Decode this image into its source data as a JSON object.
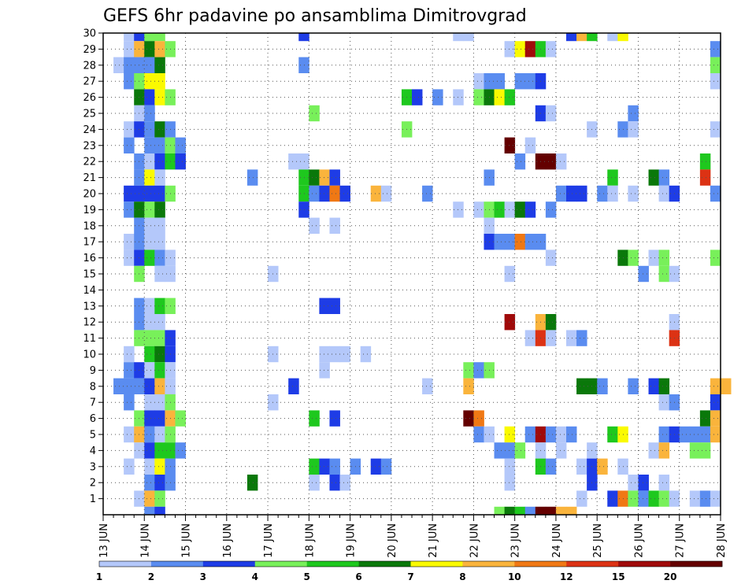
{
  "chart_data": {
    "type": "heatmap",
    "title": "GEFS 6hr padavine po ansamblima Dimitrovgrad",
    "x_tick_labels": [
      "13 JUN",
      "14 JUN",
      "15 JUN",
      "16 JUN",
      "17 JUN",
      "18 JUN",
      "19 JUN",
      "20 JUN",
      "21 JUN",
      "22 JUN",
      "23 JUN",
      "24 JUN",
      "25 JUN",
      "26 JUN",
      "27 JUN",
      "28 JUN"
    ],
    "y_tick_labels": [
      "1",
      "2",
      "3",
      "4",
      "5",
      "6",
      "7",
      "8",
      "9",
      "10",
      "11",
      "12",
      "13",
      "14",
      "15",
      "16",
      "17",
      "18",
      "19",
      "20",
      "21",
      "22",
      "23",
      "24",
      "25",
      "26",
      "27",
      "28",
      "29",
      "30"
    ],
    "ylim": [
      0,
      30
    ],
    "grid": true,
    "colorbar": {
      "tick_labels": [
        "1",
        "2",
        "3",
        "4",
        "5",
        "6",
        "7",
        "8",
        "10",
        "12",
        "15",
        "20"
      ],
      "colors": [
        "#b4c8fa",
        "#5a8cf0",
        "#1e3ce6",
        "#78f05a",
        "#1ec81e",
        "#0a780a",
        "#fafa00",
        "#fab43c",
        "#f07814",
        "#dc3214",
        "#a00a0a",
        "#640000"
      ]
    },
    "cells": [
      [
        2,
        30,
        1
      ],
      [
        3,
        30,
        3
      ],
      [
        4,
        30,
        4
      ],
      [
        5,
        30,
        4
      ],
      [
        19,
        30,
        3
      ],
      [
        34,
        30,
        1
      ],
      [
        35,
        30,
        1
      ],
      [
        45,
        30,
        3
      ],
      [
        46,
        30,
        8
      ],
      [
        47,
        30,
        5
      ],
      [
        49,
        30,
        1
      ],
      [
        50,
        30,
        7
      ],
      [
        2,
        29,
        1
      ],
      [
        3,
        29,
        8
      ],
      [
        4,
        29,
        6
      ],
      [
        5,
        29,
        8
      ],
      [
        6,
        29,
        4
      ],
      [
        39,
        29,
        1
      ],
      [
        40,
        29,
        7
      ],
      [
        41,
        29,
        11
      ],
      [
        42,
        29,
        5
      ],
      [
        43,
        29,
        1
      ],
      [
        59,
        29,
        2
      ],
      [
        1,
        28,
        1
      ],
      [
        2,
        28,
        2
      ],
      [
        3,
        28,
        2
      ],
      [
        4,
        28,
        2
      ],
      [
        5,
        28,
        6
      ],
      [
        19,
        28,
        2
      ],
      [
        59,
        28,
        4
      ],
      [
        2,
        27,
        2
      ],
      [
        3,
        27,
        4
      ],
      [
        4,
        27,
        7
      ],
      [
        5,
        27,
        7
      ],
      [
        36,
        27,
        1
      ],
      [
        37,
        27,
        2
      ],
      [
        38,
        27,
        2
      ],
      [
        40,
        27,
        2
      ],
      [
        41,
        27,
        2
      ],
      [
        42,
        27,
        3
      ],
      [
        59,
        27,
        1
      ],
      [
        3,
        26,
        6
      ],
      [
        4,
        26,
        3
      ],
      [
        5,
        26,
        7
      ],
      [
        6,
        26,
        4
      ],
      [
        29,
        26,
        5
      ],
      [
        30,
        26,
        3
      ],
      [
        32,
        26,
        2
      ],
      [
        34,
        26,
        1
      ],
      [
        36,
        26,
        4
      ],
      [
        37,
        26,
        6
      ],
      [
        38,
        26,
        7
      ],
      [
        39,
        26,
        5
      ],
      [
        3,
        25,
        1
      ],
      [
        4,
        25,
        2
      ],
      [
        20,
        25,
        4
      ],
      [
        42,
        25,
        3
      ],
      [
        43,
        25,
        1
      ],
      [
        51,
        25,
        2
      ],
      [
        2,
        24,
        1
      ],
      [
        3,
        24,
        3
      ],
      [
        4,
        24,
        2
      ],
      [
        5,
        24,
        6
      ],
      [
        6,
        24,
        2
      ],
      [
        29,
        24,
        4
      ],
      [
        47,
        24,
        1
      ],
      [
        50,
        24,
        2
      ],
      [
        51,
        24,
        1
      ],
      [
        59,
        24,
        1
      ],
      [
        2,
        23,
        2
      ],
      [
        4,
        23,
        2
      ],
      [
        5,
        23,
        2
      ],
      [
        6,
        23,
        4
      ],
      [
        7,
        23,
        2
      ],
      [
        39,
        23,
        12
      ],
      [
        41,
        23,
        1
      ],
      [
        3,
        22,
        2
      ],
      [
        4,
        22,
        1
      ],
      [
        5,
        22,
        3
      ],
      [
        6,
        22,
        5
      ],
      [
        7,
        22,
        3
      ],
      [
        18,
        22,
        1
      ],
      [
        19,
        22,
        1
      ],
      [
        40,
        22,
        2
      ],
      [
        42,
        22,
        12
      ],
      [
        43,
        22,
        12
      ],
      [
        44,
        22,
        1
      ],
      [
        58,
        22,
        5
      ],
      [
        3,
        21,
        2
      ],
      [
        4,
        21,
        7
      ],
      [
        5,
        21,
        1
      ],
      [
        14,
        21,
        2
      ],
      [
        19,
        21,
        5
      ],
      [
        20,
        21,
        6
      ],
      [
        21,
        21,
        8
      ],
      [
        22,
        21,
        3
      ],
      [
        37,
        21,
        2
      ],
      [
        49,
        21,
        5
      ],
      [
        53,
        21,
        6
      ],
      [
        54,
        21,
        2
      ],
      [
        58,
        21,
        10
      ],
      [
        2,
        20,
        3
      ],
      [
        3,
        20,
        3
      ],
      [
        4,
        20,
        3
      ],
      [
        5,
        20,
        3
      ],
      [
        6,
        20,
        4
      ],
      [
        19,
        20,
        5
      ],
      [
        20,
        20,
        2
      ],
      [
        21,
        20,
        3
      ],
      [
        22,
        20,
        9
      ],
      [
        23,
        20,
        3
      ],
      [
        26,
        20,
        8
      ],
      [
        27,
        20,
        1
      ],
      [
        31,
        20,
        2
      ],
      [
        44,
        20,
        2
      ],
      [
        45,
        20,
        3
      ],
      [
        46,
        20,
        3
      ],
      [
        48,
        20,
        2
      ],
      [
        49,
        20,
        1
      ],
      [
        51,
        20,
        1
      ],
      [
        54,
        20,
        1
      ],
      [
        55,
        20,
        3
      ],
      [
        59,
        20,
        2
      ],
      [
        2,
        19,
        2
      ],
      [
        3,
        19,
        6
      ],
      [
        4,
        19,
        4
      ],
      [
        5,
        19,
        6
      ],
      [
        19,
        19,
        3
      ],
      [
        34,
        19,
        1
      ],
      [
        36,
        19,
        1
      ],
      [
        37,
        19,
        4
      ],
      [
        38,
        19,
        5
      ],
      [
        39,
        19,
        1
      ],
      [
        40,
        19,
        6
      ],
      [
        41,
        19,
        3
      ],
      [
        43,
        19,
        2
      ],
      [
        3,
        18,
        2
      ],
      [
        4,
        18,
        1
      ],
      [
        5,
        18,
        1
      ],
      [
        20,
        18,
        1
      ],
      [
        22,
        18,
        1
      ],
      [
        37,
        18,
        1
      ],
      [
        2,
        17,
        1
      ],
      [
        3,
        17,
        2
      ],
      [
        4,
        17,
        1
      ],
      [
        5,
        17,
        1
      ],
      [
        37,
        17,
        3
      ],
      [
        38,
        17,
        2
      ],
      [
        39,
        17,
        2
      ],
      [
        40,
        17,
        9
      ],
      [
        41,
        17,
        2
      ],
      [
        42,
        17,
        2
      ],
      [
        2,
        16,
        1
      ],
      [
        3,
        16,
        3
      ],
      [
        4,
        16,
        5
      ],
      [
        5,
        16,
        2
      ],
      [
        6,
        16,
        1
      ],
      [
        43,
        16,
        1
      ],
      [
        50,
        16,
        6
      ],
      [
        51,
        16,
        4
      ],
      [
        53,
        16,
        1
      ],
      [
        54,
        16,
        4
      ],
      [
        59,
        16,
        4
      ],
      [
        3,
        15,
        4
      ],
      [
        5,
        15,
        1
      ],
      [
        6,
        15,
        1
      ],
      [
        16,
        15,
        1
      ],
      [
        39,
        15,
        1
      ],
      [
        52,
        15,
        2
      ],
      [
        54,
        15,
        4
      ],
      [
        55,
        15,
        1
      ],
      [
        3,
        13,
        2
      ],
      [
        4,
        13,
        1
      ],
      [
        5,
        13,
        5
      ],
      [
        6,
        13,
        4
      ],
      [
        21,
        13,
        3
      ],
      [
        22,
        13,
        3
      ],
      [
        3,
        12,
        2
      ],
      [
        4,
        12,
        1
      ],
      [
        5,
        12,
        1
      ],
      [
        39,
        12,
        11
      ],
      [
        42,
        12,
        8
      ],
      [
        43,
        12,
        6
      ],
      [
        55,
        12,
        1
      ],
      [
        3,
        11,
        4
      ],
      [
        4,
        11,
        4
      ],
      [
        5,
        11,
        4
      ],
      [
        6,
        11,
        3
      ],
      [
        41,
        11,
        1
      ],
      [
        42,
        11,
        10
      ],
      [
        43,
        11,
        1
      ],
      [
        45,
        11,
        1
      ],
      [
        46,
        11,
        2
      ],
      [
        55,
        11,
        10
      ],
      [
        2,
        10,
        1
      ],
      [
        4,
        10,
        5
      ],
      [
        5,
        10,
        6
      ],
      [
        6,
        10,
        3
      ],
      [
        16,
        10,
        1
      ],
      [
        21,
        10,
        1
      ],
      [
        22,
        10,
        1
      ],
      [
        23,
        10,
        1
      ],
      [
        25,
        10,
        1
      ],
      [
        2,
        9,
        2
      ],
      [
        3,
        9,
        3
      ],
      [
        4,
        9,
        1
      ],
      [
        5,
        9,
        5
      ],
      [
        6,
        9,
        1
      ],
      [
        21,
        9,
        1
      ],
      [
        35,
        9,
        4
      ],
      [
        36,
        9,
        2
      ],
      [
        37,
        9,
        4
      ],
      [
        1,
        8,
        2
      ],
      [
        2,
        8,
        2
      ],
      [
        3,
        8,
        2
      ],
      [
        4,
        8,
        3
      ],
      [
        5,
        8,
        8
      ],
      [
        6,
        8,
        1
      ],
      [
        18,
        8,
        3
      ],
      [
        31,
        8,
        1
      ],
      [
        35,
        8,
        8
      ],
      [
        46,
        8,
        6
      ],
      [
        47,
        8,
        6
      ],
      [
        48,
        8,
        2
      ],
      [
        51,
        8,
        2
      ],
      [
        53,
        8,
        3
      ],
      [
        54,
        8,
        6
      ],
      [
        59,
        8,
        8
      ],
      [
        60,
        8,
        8
      ],
      [
        2,
        7,
        2
      ],
      [
        4,
        7,
        1
      ],
      [
        5,
        7,
        1
      ],
      [
        6,
        7,
        4
      ],
      [
        16,
        7,
        1
      ],
      [
        54,
        7,
        1
      ],
      [
        55,
        7,
        2
      ],
      [
        59,
        7,
        3
      ],
      [
        3,
        6,
        4
      ],
      [
        4,
        6,
        3
      ],
      [
        5,
        6,
        3
      ],
      [
        6,
        6,
        8
      ],
      [
        7,
        6,
        4
      ],
      [
        20,
        6,
        5
      ],
      [
        22,
        6,
        3
      ],
      [
        35,
        6,
        12
      ],
      [
        36,
        6,
        9
      ],
      [
        58,
        6,
        6
      ],
      [
        59,
        6,
        8
      ],
      [
        2,
        5,
        1
      ],
      [
        3,
        5,
        8
      ],
      [
        4,
        5,
        2
      ],
      [
        5,
        5,
        1
      ],
      [
        6,
        5,
        4
      ],
      [
        36,
        5,
        2
      ],
      [
        37,
        5,
        1
      ],
      [
        39,
        5,
        7
      ],
      [
        41,
        5,
        2
      ],
      [
        42,
        5,
        11
      ],
      [
        43,
        5,
        2
      ],
      [
        44,
        5,
        1
      ],
      [
        45,
        5,
        2
      ],
      [
        49,
        5,
        5
      ],
      [
        50,
        5,
        7
      ],
      [
        54,
        5,
        2
      ],
      [
        55,
        5,
        3
      ],
      [
        56,
        5,
        2
      ],
      [
        57,
        5,
        2
      ],
      [
        58,
        5,
        2
      ],
      [
        59,
        5,
        8
      ],
      [
        3,
        4,
        1
      ],
      [
        4,
        4,
        3
      ],
      [
        5,
        4,
        5
      ],
      [
        6,
        4,
        5
      ],
      [
        7,
        4,
        2
      ],
      [
        38,
        4,
        2
      ],
      [
        39,
        4,
        2
      ],
      [
        40,
        4,
        4
      ],
      [
        42,
        4,
        1
      ],
      [
        44,
        4,
        1
      ],
      [
        47,
        4,
        1
      ],
      [
        53,
        4,
        1
      ],
      [
        54,
        4,
        8
      ],
      [
        57,
        4,
        4
      ],
      [
        58,
        4,
        4
      ],
      [
        2,
        3,
        1
      ],
      [
        4,
        3,
        1
      ],
      [
        5,
        3,
        7
      ],
      [
        6,
        3,
        2
      ],
      [
        20,
        3,
        5
      ],
      [
        21,
        3,
        3
      ],
      [
        22,
        3,
        2
      ],
      [
        24,
        3,
        2
      ],
      [
        26,
        3,
        3
      ],
      [
        27,
        3,
        2
      ],
      [
        39,
        3,
        1
      ],
      [
        42,
        3,
        5
      ],
      [
        43,
        3,
        2
      ],
      [
        46,
        3,
        1
      ],
      [
        47,
        3,
        3
      ],
      [
        48,
        3,
        8
      ],
      [
        50,
        3,
        1
      ],
      [
        4,
        2,
        2
      ],
      [
        5,
        2,
        3
      ],
      [
        6,
        2,
        2
      ],
      [
        14,
        2,
        6
      ],
      [
        20,
        2,
        1
      ],
      [
        22,
        2,
        3
      ],
      [
        23,
        2,
        1
      ],
      [
        39,
        2,
        1
      ],
      [
        47,
        2,
        3
      ],
      [
        51,
        2,
        1
      ],
      [
        52,
        2,
        3
      ],
      [
        54,
        2,
        1
      ],
      [
        3,
        1,
        1
      ],
      [
        4,
        1,
        8
      ],
      [
        5,
        1,
        4
      ],
      [
        46,
        1,
        1
      ],
      [
        49,
        1,
        3
      ],
      [
        50,
        1,
        9
      ],
      [
        51,
        1,
        4
      ],
      [
        52,
        1,
        2
      ],
      [
        53,
        1,
        5
      ],
      [
        54,
        1,
        4
      ],
      [
        55,
        1,
        1
      ],
      [
        57,
        1,
        1
      ],
      [
        58,
        1,
        2
      ],
      [
        59,
        1,
        1
      ],
      [
        4,
        0,
        2
      ],
      [
        5,
        0,
        3
      ],
      [
        38,
        0,
        4
      ],
      [
        39,
        0,
        6
      ],
      [
        40,
        0,
        5
      ],
      [
        41,
        0,
        2
      ],
      [
        42,
        0,
        12
      ],
      [
        43,
        0,
        12
      ],
      [
        44,
        0,
        8
      ],
      [
        45,
        0,
        8
      ]
    ]
  }
}
